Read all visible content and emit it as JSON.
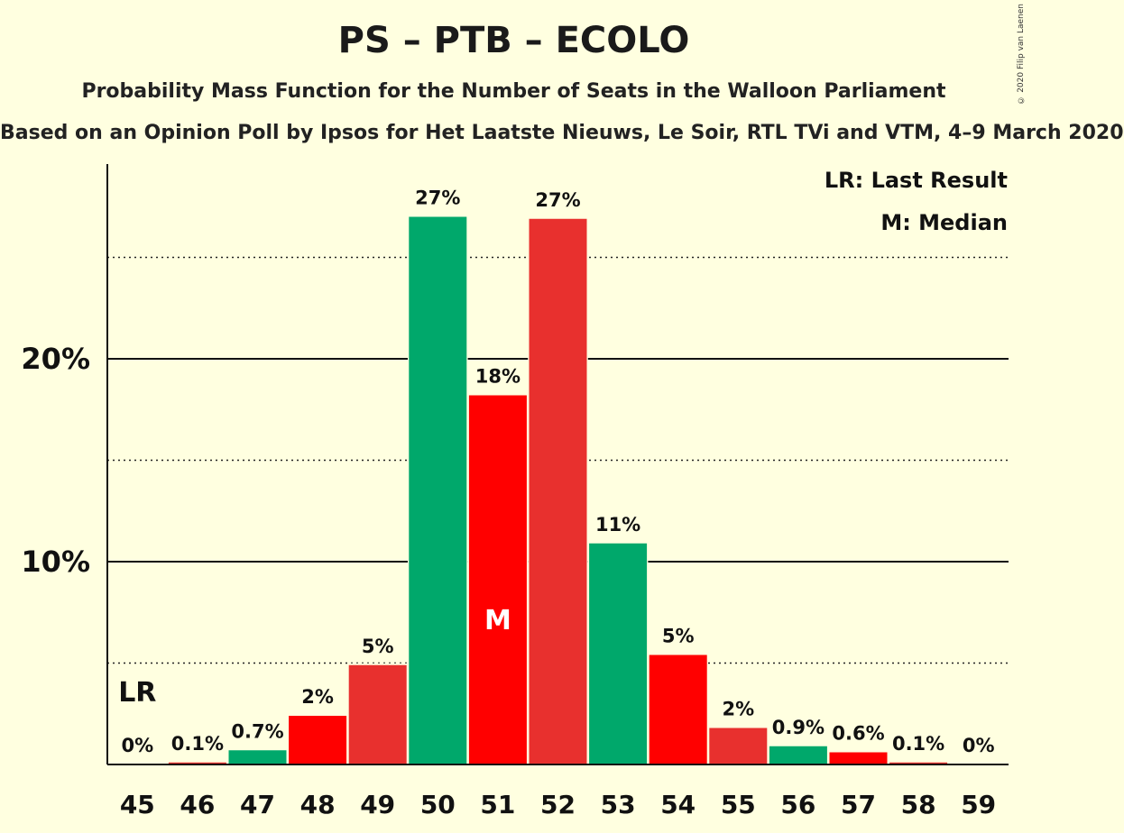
{
  "chart_data": {
    "type": "bar",
    "title": "PS – PTB – ECOLO",
    "subtitle": "Probability Mass Function for the Number of Seats in the Walloon Parliament",
    "source": "Based on an Opinion Poll by Ipsos for Het Laatste Nieuws, Le Soir, RTL TVi and VTM, 4–9 March 2020",
    "copyright": "© 2020 Filip van Laenen",
    "categories": [
      "45",
      "46",
      "47",
      "48",
      "49",
      "50",
      "51",
      "52",
      "53",
      "54",
      "55",
      "56",
      "57",
      "58",
      "59"
    ],
    "values": [
      0,
      0.1,
      0.7,
      2.4,
      4.9,
      27.0,
      18.2,
      26.9,
      10.9,
      5.4,
      1.8,
      0.9,
      0.6,
      0.1,
      0
    ],
    "data_labels": [
      "0%",
      "0.1%",
      "0.7%",
      "2%",
      "5%",
      "27%",
      "18%",
      "27%",
      "11%",
      "5%",
      "2%",
      "0.9%",
      "0.6%",
      "0.1%",
      "0%"
    ],
    "bar_colors": [
      "#00a86b",
      "#e8302e",
      "#00a86b",
      "#ff0000",
      "#e8302e",
      "#00a86b",
      "#ff0000",
      "#e8302e",
      "#00a86b",
      "#ff0000",
      "#e8302e",
      "#00a86b",
      "#ff0000",
      "#e8302e",
      "#00a86b"
    ],
    "yticks": [
      {
        "value": 10,
        "label": "10%"
      },
      {
        "value": 20,
        "label": "20%"
      }
    ],
    "dotted_gridlines": [
      5,
      15,
      25
    ],
    "ylim": [
      0,
      29.5
    ],
    "last_result": {
      "category": "45",
      "label": "LR"
    },
    "median": {
      "category": "51",
      "label": "M"
    },
    "legend": [
      "LR: Last Result",
      "M: Median"
    ],
    "legend_position": "top-right"
  }
}
